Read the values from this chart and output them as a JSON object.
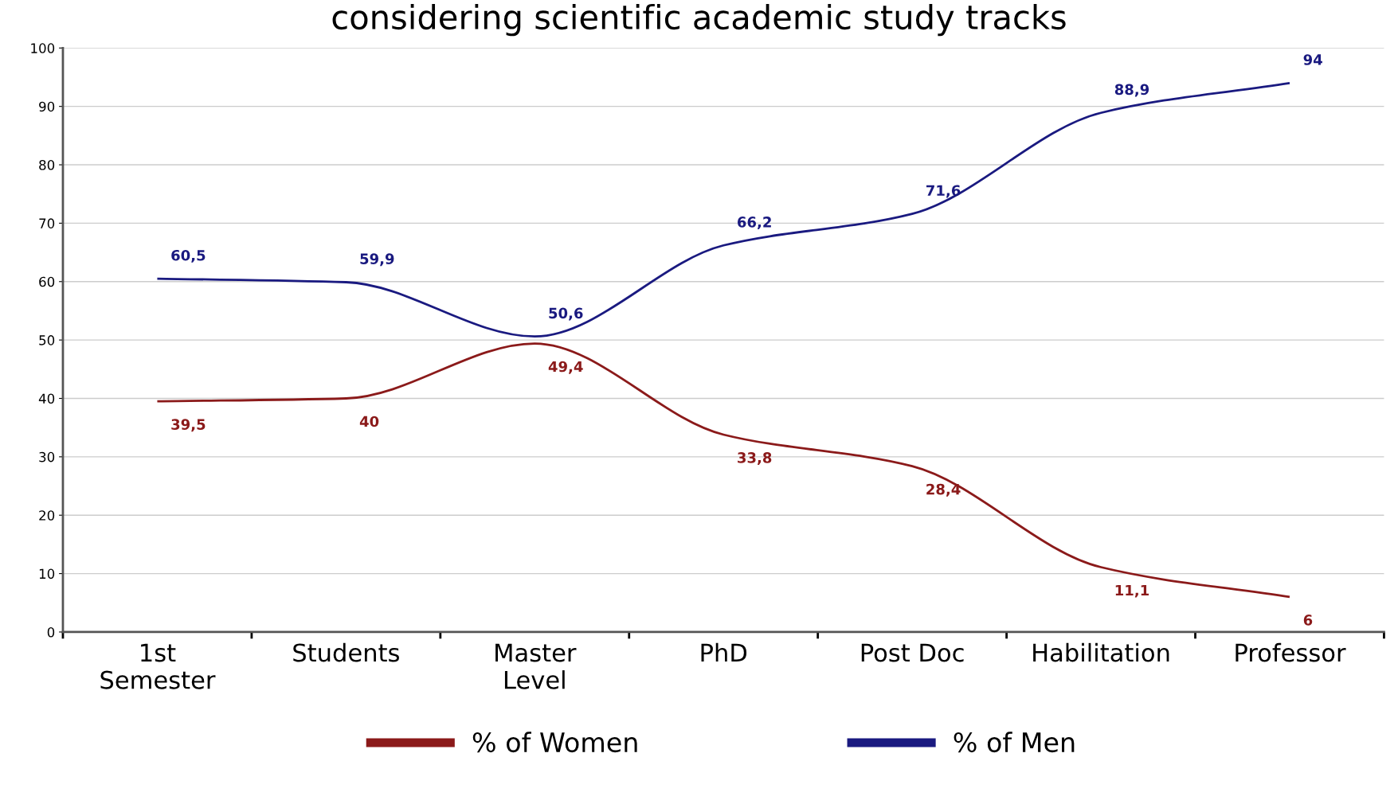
{
  "chart_data": {
    "type": "line",
    "title": "considering scientific academic study tracks",
    "categories": [
      "1st\nSemester",
      "Students",
      "Master\nLevel",
      "PhD",
      "Post Doc",
      "Habilitation",
      "Professor"
    ],
    "series": [
      {
        "name": "% of Women",
        "color": "#8b1a1a",
        "values": [
          39.5,
          40,
          49.4,
          33.8,
          28.4,
          11.1,
          6
        ],
        "value_labels": [
          "39,5",
          "40",
          "49,4",
          "33,8",
          "28,4",
          "11,1",
          "6"
        ]
      },
      {
        "name": "% of Men",
        "color": "#1a1a80",
        "values": [
          60.5,
          59.9,
          50.6,
          66.2,
          71.6,
          88.9,
          94
        ],
        "value_labels": [
          "60,5",
          "59,9",
          "50,6",
          "66,2",
          "71,6",
          "88,9",
          "94"
        ]
      }
    ],
    "ylim": [
      0,
      100
    ],
    "yticks": [
      0,
      10,
      20,
      30,
      40,
      50,
      60,
      70,
      80,
      90,
      100
    ],
    "grid": "y",
    "legend": "bottom",
    "marker": "none",
    "line_style": "solid"
  }
}
